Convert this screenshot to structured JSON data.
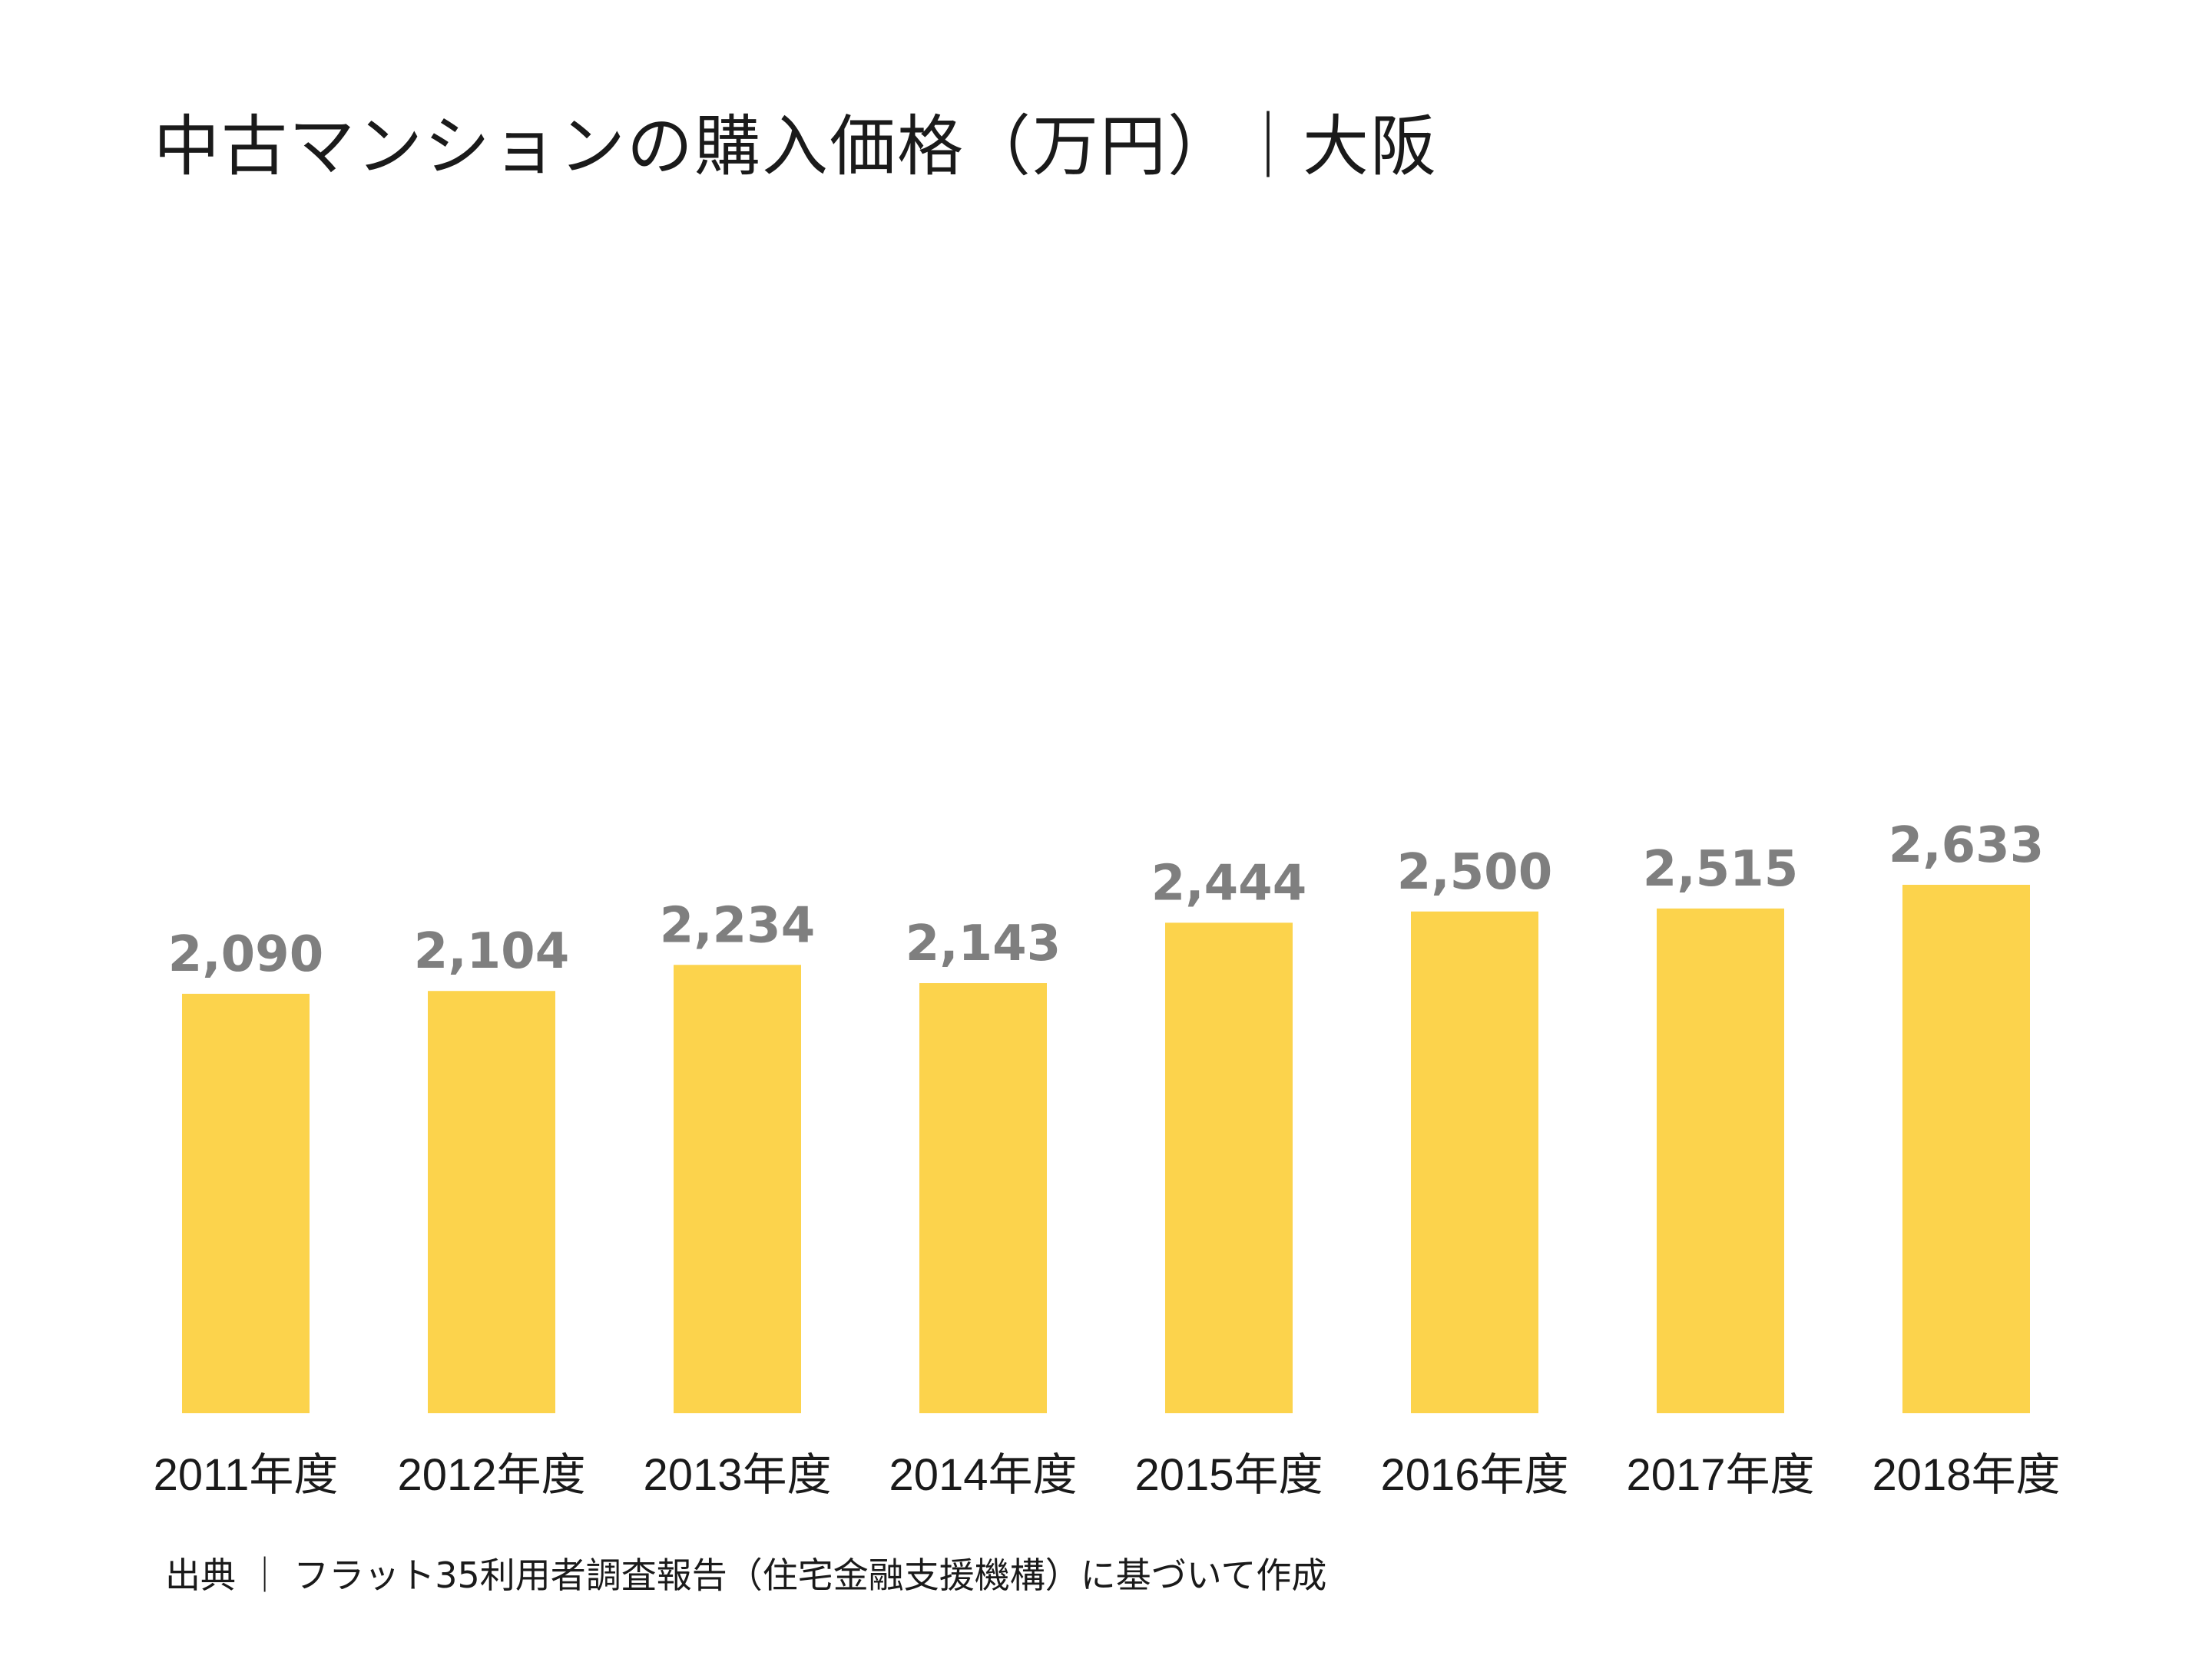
{
  "title": "中古マンションの購入価格（万円）｜大阪",
  "source": "出典 ｜ フラット35利用者調査報告（住宅金融支援機構）に基づいて作成",
  "colors": {
    "bar": "#FCD34C",
    "value_label": "#7F7F7F",
    "category_label": "#1A1A1A"
  },
  "chart_data": {
    "type": "bar",
    "categories": [
      "2011年度",
      "2012年度",
      "2013年度",
      "2014年度",
      "2015年度",
      "2016年度",
      "2017年度",
      "2018年度"
    ],
    "values": [
      2090,
      2104,
      2234,
      2143,
      2444,
      2500,
      2515,
      2633
    ],
    "data_labels": [
      "2,090",
      "2,104",
      "2,234",
      "2,143",
      "2,444",
      "2,500",
      "2,515",
      "2,633"
    ],
    "title": "中古マンションの購入価格（万円）｜大阪",
    "xlabel": "",
    "ylabel": "",
    "ylim": [
      0,
      2633
    ],
    "grid": false,
    "legend": "none"
  }
}
